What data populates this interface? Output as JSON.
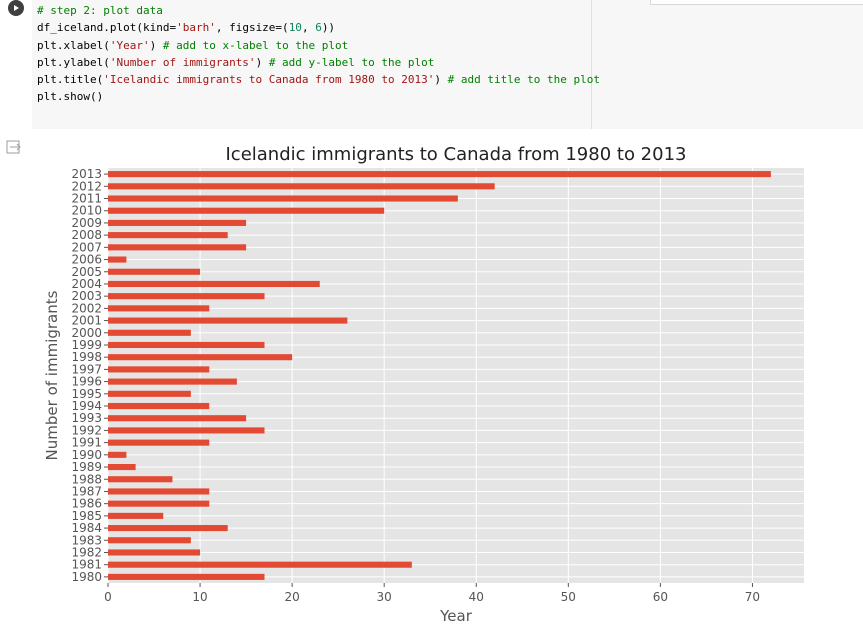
{
  "code": {
    "lines": [
      [
        {
          "t": "# step 2: plot data",
          "c": "comment"
        }
      ],
      [
        {
          "t": "df_iceland.plot(kind=",
          "c": "plain"
        },
        {
          "t": "'barh'",
          "c": "string"
        },
        {
          "t": ", figsize=(",
          "c": "plain"
        },
        {
          "t": "10",
          "c": "number"
        },
        {
          "t": ", ",
          "c": "plain"
        },
        {
          "t": "6",
          "c": "number"
        },
        {
          "t": "))",
          "c": "plain"
        }
      ],
      [
        {
          "t": "plt.xlabel(",
          "c": "plain"
        },
        {
          "t": "'Year'",
          "c": "string"
        },
        {
          "t": ") ",
          "c": "plain"
        },
        {
          "t": "# add to x-label to the plot",
          "c": "comment"
        }
      ],
      [
        {
          "t": "plt.ylabel(",
          "c": "plain"
        },
        {
          "t": "'Number of immigrants'",
          "c": "string"
        },
        {
          "t": ") ",
          "c": "plain"
        },
        {
          "t": "# add y-label to the plot",
          "c": "comment"
        }
      ],
      [
        {
          "t": "plt.title(",
          "c": "plain"
        },
        {
          "t": "'Icelandic immigrants to Canada from 1980 to 2013'",
          "c": "string"
        },
        {
          "t": ") ",
          "c": "plain"
        },
        {
          "t": "# add title to the plot",
          "c": "comment"
        }
      ],
      [
        {
          "t": "plt.show()",
          "c": "plain"
        }
      ]
    ]
  },
  "icons": {
    "run": "play-icon",
    "output": "output-exit-icon"
  },
  "colors": {
    "bar": "#E24A33",
    "plot_bg": "#E5E5E5",
    "grid": "#FFFFFF",
    "text": "#555555",
    "title": "#222222"
  },
  "chart_data": {
    "type": "bar",
    "orientation": "horizontal",
    "title": "Icelandic immigrants to Canada from 1980 to 2013",
    "xlabel": "Year",
    "ylabel": "Number of immigrants",
    "categories": [
      "1980",
      "1981",
      "1982",
      "1983",
      "1984",
      "1985",
      "1986",
      "1987",
      "1988",
      "1989",
      "1990",
      "1991",
      "1992",
      "1993",
      "1994",
      "1995",
      "1996",
      "1997",
      "1998",
      "1999",
      "2000",
      "2001",
      "2002",
      "2003",
      "2004",
      "2005",
      "2006",
      "2007",
      "2008",
      "2009",
      "2010",
      "2011",
      "2012",
      "2013"
    ],
    "values": [
      17,
      33,
      10,
      9,
      13,
      6,
      11,
      11,
      7,
      3,
      2,
      11,
      17,
      15,
      11,
      9,
      14,
      11,
      20,
      17,
      9,
      26,
      11,
      17,
      23,
      10,
      2,
      15,
      13,
      15,
      30,
      38,
      42,
      72
    ],
    "xlim": [
      0,
      75.6
    ],
    "xticks": [
      0,
      10,
      20,
      30,
      40,
      50,
      60,
      70
    ],
    "grid": true
  }
}
